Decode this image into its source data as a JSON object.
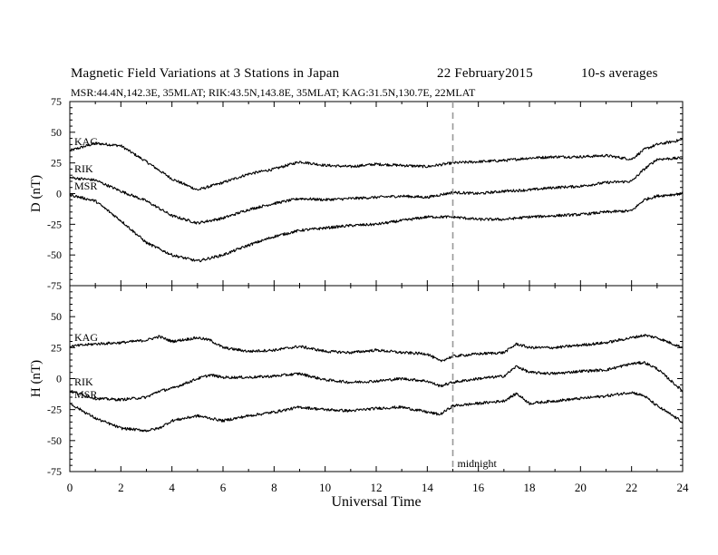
{
  "header": {
    "title": "Magnetic Field Variations at 3 Stations in Japan",
    "date": "22 February2015",
    "averaging": "10-s averages",
    "stations_line": "MSR:44.4N,142.3E, 35MLAT;   RIK:43.5N,143.8E, 35MLAT;   KAG:31.5N,130.7E, 22MLAT"
  },
  "chart_data": {
    "type": "line",
    "xlabel": "Universal Time",
    "x_ticks": [
      "0",
      "2",
      "4",
      "6",
      "8",
      "10",
      "12",
      "14",
      "16",
      "18",
      "20",
      "22",
      "24"
    ],
    "xlim": [
      0,
      24
    ],
    "grid": false,
    "annotation": {
      "text": "midnight",
      "x": 15,
      "style": "dashed vertical line"
    },
    "panels": [
      {
        "ylabel": "D (nT)",
        "ylim": [
          -75,
          75
        ],
        "y_ticks": [
          "75",
          "50",
          "25",
          "0",
          "-25",
          "-50",
          "-75"
        ],
        "series": [
          {
            "name": "KAG",
            "x": [
              0,
              1,
              2,
              3,
              4,
              5,
              6,
              7,
              8,
              9,
              10,
              11,
              12,
              13,
              14,
              15,
              16,
              17,
              18,
              19,
              20,
              21,
              22,
              22.5,
              23,
              24
            ],
            "values": [
              35,
              41,
              39,
              26,
              12,
              3,
              9,
              16,
              20,
              26,
              23,
              22,
              24,
              23,
              22,
              25,
              26,
              27,
              29,
              30,
              30,
              31,
              28,
              36,
              40,
              44
            ]
          },
          {
            "name": "RIK",
            "x": [
              0,
              1,
              2,
              3,
              4,
              5,
              6,
              7,
              8,
              9,
              10,
              11,
              12,
              13,
              14,
              15,
              16,
              17,
              18,
              19,
              20,
              21,
              22,
              22.5,
              23,
              24
            ],
            "values": [
              13,
              11,
              2,
              -6,
              -18,
              -24,
              -20,
              -13,
              -8,
              -4,
              -5,
              -4,
              -3,
              -2,
              -3,
              1,
              0,
              2,
              3,
              5,
              6,
              9,
              10,
              20,
              28,
              29
            ]
          },
          {
            "name": "MSR",
            "x": [
              0,
              1,
              2,
              3,
              4,
              5,
              6,
              7,
              8,
              9,
              10,
              11,
              12,
              13,
              14,
              15,
              16,
              17,
              18,
              19,
              20,
              21,
              22,
              22.5,
              23,
              24
            ],
            "values": [
              -1,
              -6,
              -22,
              -40,
              -50,
              -55,
              -50,
              -42,
              -35,
              -30,
              -28,
              -26,
              -25,
              -22,
              -19,
              -19,
              -21,
              -21,
              -19,
              -18,
              -17,
              -15,
              -14,
              -5,
              -2,
              0
            ]
          }
        ]
      },
      {
        "ylabel": "H (nT)",
        "ylim": [
          -75,
          75
        ],
        "y_ticks": [
          "75",
          "50",
          "25",
          "0",
          "-25",
          "-50",
          "-75"
        ],
        "series": [
          {
            "name": "KAG",
            "x": [
              0,
              1,
              2,
              3,
              3.5,
              4,
              5,
              5.5,
              6,
              7,
              8,
              9,
              10,
              11,
              12,
              13,
              14,
              14.5,
              15,
              16,
              17,
              17.5,
              18,
              19,
              20,
              21,
              22,
              22.5,
              23,
              24
            ],
            "values": [
              26,
              28,
              29,
              31,
              34,
              30,
              33,
              31,
              25,
              22,
              23,
              26,
              22,
              21,
              23,
              21,
              20,
              14,
              18,
              20,
              21,
              28,
              25,
              25,
              27,
              29,
              33,
              35,
              33,
              25
            ]
          },
          {
            "name": "RIK",
            "x": [
              0,
              1,
              2,
              3,
              3.5,
              4,
              5,
              5.5,
              6,
              7,
              8,
              9,
              10,
              11,
              12,
              13,
              14,
              14.5,
              15,
              16,
              17,
              17.5,
              18,
              19,
              20,
              21,
              22,
              22.5,
              23,
              24
            ],
            "values": [
              -10,
              -16,
              -17,
              -15,
              -10,
              -8,
              0,
              3,
              1,
              1,
              2,
              4,
              -1,
              -3,
              -2,
              0,
              -2,
              -6,
              -3,
              0,
              2,
              10,
              5,
              4,
              6,
              7,
              12,
              13,
              8,
              -10
            ]
          },
          {
            "name": "MSR",
            "x": [
              0,
              1,
              2,
              3,
              3.5,
              4,
              5,
              5.5,
              6,
              7,
              8,
              9,
              10,
              11,
              12,
              13,
              14,
              14.5,
              15,
              16,
              17,
              17.5,
              18,
              19,
              20,
              21,
              22,
              22.5,
              23,
              24
            ],
            "values": [
              -20,
              -32,
              -40,
              -42,
              -40,
              -34,
              -30,
              -32,
              -34,
              -30,
              -27,
              -23,
              -25,
              -26,
              -24,
              -23,
              -27,
              -29,
              -22,
              -20,
              -18,
              -12,
              -20,
              -18,
              -16,
              -14,
              -11,
              -14,
              -22,
              -35
            ]
          }
        ]
      }
    ]
  }
}
